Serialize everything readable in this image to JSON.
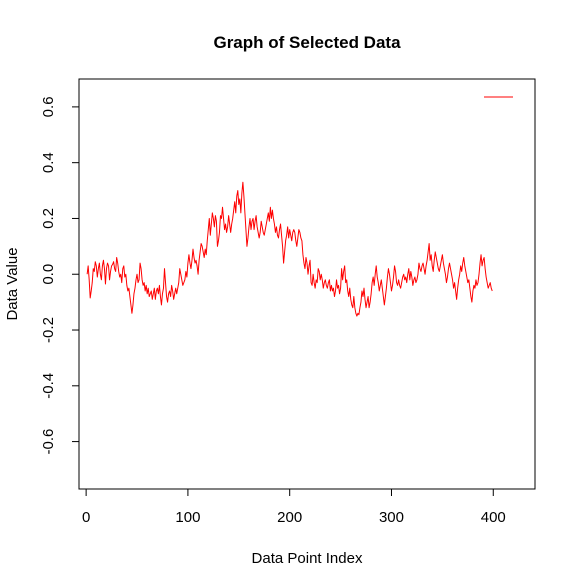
{
  "chart_data": {
    "type": "line",
    "title": "Graph of Selected Data",
    "xlabel": "Data Point Index",
    "ylabel": "Data Value",
    "xlim": [
      -7,
      441
    ],
    "ylim": [
      -0.77,
      0.7
    ],
    "x_ticks": [
      0,
      100,
      200,
      300,
      400
    ],
    "x_tick_labels": [
      "0",
      "100",
      "200",
      "300",
      "400"
    ],
    "y_ticks": [
      -0.6,
      -0.4,
      -0.2,
      0.0,
      0.2,
      0.4,
      0.6
    ],
    "y_tick_labels": [
      "-0.6",
      "-0.4",
      "-0.2",
      "0.0",
      "0.2",
      "0.4",
      "0.6"
    ],
    "grid": false,
    "legend_position": "top-right",
    "legend_entries": [
      {
        "label": "",
        "color": "#ff0000"
      }
    ],
    "series": [
      {
        "color": "#ff0000",
        "x_start": 1,
        "values": [
          0.0,
          0.03,
          -0.02,
          -0.085,
          -0.06,
          -0.03,
          0.02,
          0.01,
          0.045,
          0.03,
          -0.01,
          0.02,
          0.04,
          0.0,
          -0.02,
          0.03,
          0.05,
          0.02,
          -0.035,
          0.02,
          0.04,
          0.03,
          -0.02,
          0.01,
          0.03,
          0.035,
          0.045,
          0.02,
          0.01,
          0.06,
          0.04,
          0.01,
          -0.01,
          0.0,
          -0.03,
          0.02,
          0.03,
          -0.01,
          0.0,
          -0.04,
          -0.06,
          -0.05,
          -0.08,
          -0.11,
          -0.14,
          -0.11,
          -0.07,
          -0.05,
          -0.02,
          0.0,
          -0.03,
          -0.02,
          0.04,
          0.02,
          -0.02,
          -0.04,
          -0.03,
          -0.06,
          -0.04,
          -0.07,
          -0.05,
          -0.08,
          -0.07,
          -0.06,
          -0.09,
          -0.07,
          -0.05,
          -0.09,
          -0.06,
          -0.05,
          -0.07,
          -0.04,
          -0.08,
          -0.11,
          -0.07,
          -0.05,
          0.02,
          -0.03,
          -0.08,
          -0.1,
          -0.07,
          -0.06,
          -0.08,
          -0.04,
          -0.06,
          -0.09,
          -0.07,
          -0.05,
          -0.07,
          -0.05,
          -0.03,
          0.02,
          0.0,
          -0.02,
          -0.04,
          -0.03,
          -0.02,
          0.01,
          -0.01,
          0.04,
          0.07,
          0.04,
          0.02,
          0.05,
          0.09,
          0.06,
          0.04,
          0.05,
          0.03,
          0.0,
          0.05,
          0.08,
          0.11,
          0.1,
          0.08,
          0.06,
          0.09,
          0.07,
          0.12,
          0.16,
          0.2,
          0.14,
          0.18,
          0.22,
          0.2,
          0.17,
          0.21,
          0.19,
          0.1,
          0.12,
          0.15,
          0.21,
          0.2,
          0.24,
          0.2,
          0.16,
          0.18,
          0.15,
          0.17,
          0.21,
          0.18,
          0.15,
          0.18,
          0.2,
          0.23,
          0.26,
          0.22,
          0.28,
          0.3,
          0.25,
          0.27,
          0.22,
          0.29,
          0.33,
          0.28,
          0.22,
          0.16,
          0.1,
          0.13,
          0.17,
          0.2,
          0.16,
          0.19,
          0.2,
          0.16,
          0.19,
          0.21,
          0.17,
          0.15,
          0.13,
          0.15,
          0.19,
          0.17,
          0.15,
          0.14,
          0.16,
          0.18,
          0.2,
          0.22,
          0.19,
          0.24,
          0.2,
          0.23,
          0.2,
          0.18,
          0.15,
          0.17,
          0.14,
          0.13,
          0.16,
          0.18,
          0.14,
          0.1,
          0.04,
          0.08,
          0.12,
          0.14,
          0.17,
          0.13,
          0.16,
          0.14,
          0.12,
          0.15,
          0.16,
          0.15,
          0.12,
          0.1,
          0.13,
          0.16,
          0.15,
          0.13,
          0.12,
          0.07,
          0.04,
          0.02,
          0.06,
          0.04,
          0.0,
          0.03,
          0.05,
          -0.03,
          -0.04,
          0.0,
          -0.03,
          -0.05,
          -0.02,
          -0.03,
          0.02,
          0.01,
          -0.02,
          0.0,
          -0.02,
          -0.05,
          -0.03,
          -0.02,
          -0.04,
          -0.05,
          -0.03,
          -0.02,
          -0.06,
          -0.04,
          -0.06,
          -0.05,
          -0.08,
          -0.06,
          -0.02,
          -0.05,
          -0.04,
          -0.07,
          -0.05,
          0.02,
          -0.02,
          0.01,
          0.03,
          -0.03,
          -0.02,
          -0.06,
          -0.08,
          -0.05,
          -0.09,
          -0.11,
          -0.12,
          -0.08,
          -0.12,
          -0.14,
          -0.15,
          -0.14,
          -0.145,
          -0.12,
          -0.1,
          -0.06,
          -0.08,
          -0.05,
          -0.09,
          -0.12,
          -0.1,
          -0.08,
          -0.12,
          -0.1,
          -0.07,
          -0.03,
          -0.01,
          -0.04,
          0.0,
          0.03,
          -0.01,
          -0.03,
          -0.06,
          -0.04,
          -0.02,
          -0.05,
          -0.08,
          -0.11,
          -0.08,
          -0.05,
          -0.01,
          0.02,
          0.0,
          -0.03,
          -0.06,
          -0.04,
          -0.01,
          0.03,
          0.01,
          -0.03,
          -0.04,
          -0.02,
          -0.04,
          -0.05,
          -0.03,
          -0.01,
          0.0,
          -0.02,
          -0.01,
          -0.03,
          0.0,
          0.02,
          -0.02,
          0.01,
          -0.01,
          -0.04,
          -0.02,
          -0.01,
          -0.03,
          -0.02,
          0.0,
          0.04,
          0.02,
          0.01,
          0.03,
          0.04,
          0.02,
          0.0,
          0.03,
          0.05,
          0.08,
          0.11,
          0.05,
          0.07,
          0.03,
          0.01,
          0.05,
          0.08,
          0.06,
          0.04,
          0.02,
          0.01,
          0.03,
          0.05,
          0.07,
          0.04,
          0.02,
          0.0,
          -0.03,
          -0.01,
          0.02,
          0.04,
          0.02,
          0.0,
          -0.02,
          -0.05,
          -0.03,
          -0.06,
          -0.09,
          -0.05,
          -0.02,
          0.0,
          0.03,
          0.01,
          0.04,
          0.06,
          0.03,
          0.01,
          -0.01,
          -0.03,
          -0.02,
          -0.05,
          -0.08,
          -0.1,
          -0.06,
          -0.04,
          -0.05,
          -0.02,
          -0.04,
          -0.03,
          0.0,
          0.04,
          0.07,
          0.03,
          0.05,
          0.06,
          0.02,
          -0.01,
          -0.03,
          -0.05,
          -0.04,
          -0.03,
          -0.05,
          -0.06
        ]
      }
    ]
  }
}
